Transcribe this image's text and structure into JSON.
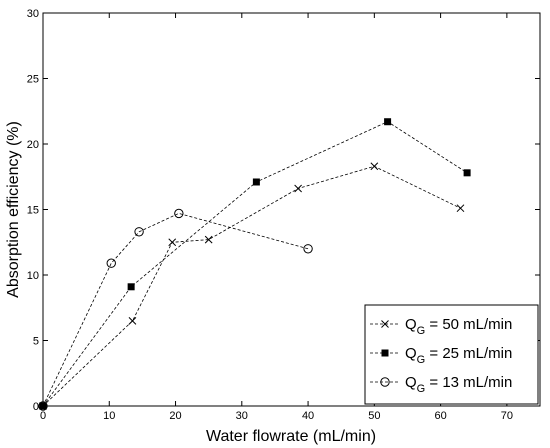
{
  "chart_data": {
    "type": "line",
    "xlabel": "Water flowrate (mL/min)",
    "ylabel": "Absorption efficiency (%)",
    "xlim": [
      0,
      75
    ],
    "ylim": [
      0,
      30
    ],
    "xticks": [
      0,
      10,
      20,
      30,
      40,
      50,
      60,
      70
    ],
    "yticks": [
      0,
      5,
      10,
      15,
      20,
      25,
      30
    ],
    "grid": false,
    "legend_position": "bottom-right",
    "series": [
      {
        "name_prefix": "Q",
        "name_subscript": "G",
        "name_suffix": " = 50 mL/min",
        "marker": "x",
        "x": [
          0,
          13.5,
          19.5,
          25,
          38.5,
          50,
          63
        ],
        "y": [
          0,
          6.5,
          12.5,
          12.7,
          16.6,
          18.3,
          15.1
        ]
      },
      {
        "name_prefix": "Q",
        "name_subscript": "G",
        "name_suffix": " = 25 mL/min",
        "marker": "filled-square",
        "x": [
          0,
          13.3,
          32.2,
          52,
          64
        ],
        "y": [
          0,
          9.1,
          17.1,
          21.7,
          17.8
        ]
      },
      {
        "name_prefix": "Q",
        "name_subscript": "G",
        "name_suffix": " = 13 mL/min",
        "marker": "open-circle",
        "x": [
          0,
          10.3,
          14.5,
          20.5,
          40
        ],
        "y": [
          0,
          10.9,
          13.3,
          14.7,
          12
        ]
      }
    ]
  }
}
